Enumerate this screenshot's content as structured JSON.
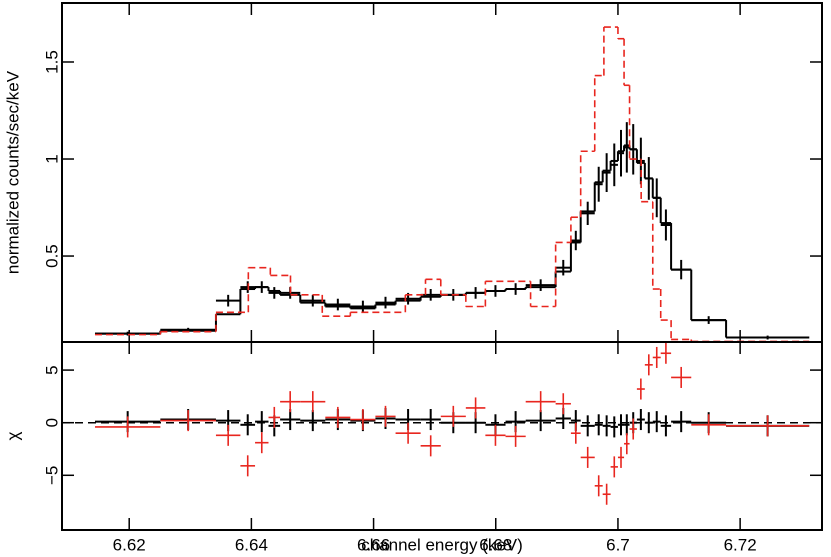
{
  "chart_data": [
    {
      "type": "step",
      "ylabel": "normalized counts/sec/keV",
      "xlim": [
        6.609,
        6.7334
      ],
      "ylim": [
        0.057,
        1.804
      ],
      "xticks": [
        6.62,
        6.64,
        6.66,
        6.68,
        6.7,
        6.72
      ],
      "yticks": [
        0.5,
        1,
        1.5
      ],
      "series": [
        {
          "style": "data",
          "color": "#000000",
          "bins": [
            6.6144,
            6.6251,
            6.6342,
            6.6382,
            6.6406,
            6.6428,
            6.6447,
            6.648,
            6.6521,
            6.6562,
            6.6603,
            6.6636,
            6.6677,
            6.671,
            6.6751,
            6.6783,
            6.6816,
            6.6849,
            6.6898,
            6.6923,
            6.6939,
            6.6962,
            6.6975,
            6.6988,
            6.7,
            6.701,
            6.7019,
            6.7031,
            6.7044,
            6.7057,
            6.707,
            6.7087,
            6.712,
            6.7177,
            6.7313
          ],
          "values": [
            0.1,
            0.12,
            0.27,
            0.34,
            0.34,
            0.31,
            0.31,
            0.27,
            0.25,
            0.24,
            0.26,
            0.28,
            0.3,
            0.3,
            0.31,
            0.32,
            0.33,
            0.35,
            0.44,
            0.58,
            0.72,
            0.87,
            0.93,
            0.97,
            1.03,
            1.06,
            1.05,
            0.99,
            0.9,
            0.8,
            0.66,
            0.43,
            0.17,
            0.08
          ],
          "errors": [
            0.01,
            0.01,
            0.03,
            0.03,
            0.03,
            0.03,
            0.03,
            0.03,
            0.03,
            0.03,
            0.03,
            0.03,
            0.03,
            0.03,
            0.03,
            0.03,
            0.03,
            0.03,
            0.04,
            0.05,
            0.06,
            0.09,
            0.1,
            0.11,
            0.12,
            0.13,
            0.13,
            0.12,
            0.11,
            0.1,
            0.08,
            0.05,
            0.02,
            0.01
          ]
        },
        {
          "style": "solid",
          "color": "#000000",
          "bins": [
            6.6144,
            6.6251,
            6.6342,
            6.6382,
            6.6406,
            6.6428,
            6.6447,
            6.648,
            6.6521,
            6.6562,
            6.6603,
            6.6636,
            6.6677,
            6.671,
            6.6751,
            6.6783,
            6.6816,
            6.6849,
            6.6898,
            6.6923,
            6.6939,
            6.6962,
            6.6975,
            6.6988,
            6.7,
            6.701,
            6.7019,
            6.7031,
            6.7044,
            6.7057,
            6.707,
            6.7087,
            6.712,
            6.7177,
            6.7313
          ],
          "values": [
            0.1,
            0.115,
            0.2,
            0.33,
            0.34,
            0.32,
            0.3,
            0.26,
            0.24,
            0.23,
            0.25,
            0.27,
            0.29,
            0.3,
            0.31,
            0.32,
            0.33,
            0.34,
            0.42,
            0.57,
            0.73,
            0.88,
            0.94,
            0.99,
            1.04,
            1.07,
            1.05,
            0.98,
            0.9,
            0.8,
            0.67,
            0.43,
            0.17,
            0.08
          ]
        },
        {
          "style": "dashed",
          "color": "#e8261f",
          "bins": [
            6.6144,
            6.6251,
            6.6342,
            6.6395,
            6.6431,
            6.6464,
            6.6516,
            6.6562,
            6.6652,
            6.6685,
            6.671,
            6.6751,
            6.6783,
            6.6857,
            6.6898,
            6.6923,
            6.6939,
            6.6962,
            6.6977,
            6.7,
            6.701,
            6.7019,
            6.7038,
            6.7057,
            6.707,
            6.7087,
            6.712,
            6.7177,
            6.7313
          ],
          "values": [
            0.095,
            0.11,
            0.21,
            0.44,
            0.4,
            0.3,
            0.19,
            0.21,
            0.3,
            0.38,
            0.3,
            0.24,
            0.37,
            0.24,
            0.57,
            0.7,
            1.04,
            1.43,
            1.68,
            1.62,
            1.38,
            1.0,
            0.78,
            0.33,
            0.17,
            0.07,
            0.06,
            0.06
          ]
        }
      ]
    },
    {
      "type": "residual",
      "xlabel": "channel energy (keV)",
      "ylabel": "χ",
      "xlim": [
        6.609,
        6.7334
      ],
      "ylim": [
        -10.2,
        7.67
      ],
      "xticks": [
        6.62,
        6.64,
        6.66,
        6.68,
        6.7,
        6.72
      ],
      "yticks": [
        {
          "value": -5,
          "label": "−5"
        },
        0,
        5
      ],
      "series": [
        {
          "style": "data",
          "color": "#000000",
          "bins": [
            6.6144,
            6.6251,
            6.6342,
            6.6382,
            6.6406,
            6.6428,
            6.6447,
            6.648,
            6.6521,
            6.6562,
            6.6603,
            6.6636,
            6.6677,
            6.671,
            6.6751,
            6.6783,
            6.6816,
            6.6849,
            6.6898,
            6.6923,
            6.6939,
            6.6962,
            6.6975,
            6.6988,
            6.7,
            6.701,
            6.7019,
            6.7031,
            6.7044,
            6.7057,
            6.707,
            6.7087,
            6.712,
            6.7177,
            6.7313
          ],
          "values": [
            0.1,
            0.3,
            0.2,
            -0.2,
            0.1,
            -0.3,
            0.3,
            0.2,
            0.3,
            0.2,
            0.4,
            0.3,
            0.3,
            0.0,
            0.0,
            -0.2,
            0.1,
            0.2,
            0.4,
            0.2,
            -0.3,
            -0.2,
            -0.3,
            -0.4,
            -0.2,
            -0.2,
            0.0,
            0.3,
            0.0,
            0.1,
            -0.3,
            0.1,
            0.0,
            -0.3
          ],
          "errors": [
            1,
            1,
            1,
            1,
            1,
            1,
            1,
            1,
            1,
            1,
            1,
            1,
            1,
            1,
            1,
            1,
            1,
            1,
            1,
            1,
            1,
            1,
            1,
            1,
            1,
            1,
            1,
            1,
            1,
            1,
            1,
            1,
            1,
            1
          ]
        },
        {
          "style": "data",
          "color": "#e8261f",
          "bins": [
            6.6144,
            6.6251,
            6.6342,
            6.6382,
            6.6406,
            6.6428,
            6.6447,
            6.648,
            6.6521,
            6.6562,
            6.6603,
            6.6636,
            6.6677,
            6.671,
            6.6751,
            6.6783,
            6.6816,
            6.6849,
            6.6898,
            6.6923,
            6.6939,
            6.6962,
            6.6975,
            6.6988,
            6.7,
            6.701,
            6.7019,
            6.7031,
            6.7044,
            6.7057,
            6.707,
            6.7087,
            6.712,
            6.7177,
            6.7313
          ],
          "values": [
            -0.4,
            0.2,
            -1.2,
            -4.1,
            -1.9,
            0.5,
            2.0,
            2.0,
            0.5,
            0.3,
            0.6,
            -1.0,
            -2.2,
            0.6,
            1.4,
            -1.2,
            -1.3,
            2.0,
            1.8,
            -1.0,
            -3.3,
            -6.0,
            -6.8,
            -4.2,
            -3.3,
            -2.0,
            -0.6,
            3.2,
            5.5,
            6.2,
            6.6,
            4.3,
            -0.2,
            -0.3
          ],
          "errors": [
            1,
            1,
            1,
            1,
            1,
            1,
            1,
            1,
            1,
            1,
            1,
            1,
            1,
            1,
            1,
            1,
            1,
            1,
            1,
            1,
            1,
            1,
            1,
            1,
            1,
            1,
            1,
            1,
            1,
            1,
            1,
            1,
            1,
            1
          ]
        }
      ]
    }
  ]
}
